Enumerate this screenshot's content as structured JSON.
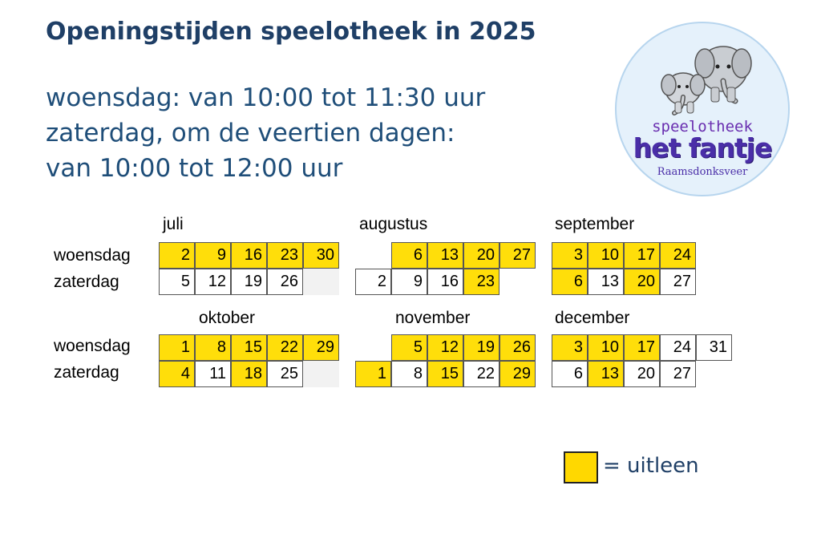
{
  "title": "Openingstijden speelotheek in 2025",
  "intro": [
    "woensdag: van 10:00 tot 11:30 uur",
    "zaterdag, om de veertien dagen:",
    "van 10:00 tot 12:00 uur"
  ],
  "logo": {
    "line1": "speelotheek",
    "line2": "het fantje",
    "line3": "Raamsdonksveer",
    "icon": "two-elephants-illustration"
  },
  "row_labels": {
    "wednesday": "woensdag",
    "saturday": "zaterdag"
  },
  "colors": {
    "highlight": "#ffde0a",
    "title": "#1f3f66",
    "text": "#1f4e79"
  },
  "months": [
    {
      "name": "juli",
      "woensdag": [
        {
          "d": "2",
          "u": true
        },
        {
          "d": "9",
          "u": true
        },
        {
          "d": "16",
          "u": true
        },
        {
          "d": "23",
          "u": true
        },
        {
          "d": "30",
          "u": true
        }
      ],
      "zaterdag": [
        {
          "d": "5",
          "u": false
        },
        {
          "d": "12",
          "u": false
        },
        {
          "d": "19",
          "u": false
        },
        {
          "d": "26",
          "u": false
        },
        {
          "d": "",
          "u": false,
          "blank": true
        }
      ]
    },
    {
      "name": "augustus",
      "woensdag": [
        {
          "d": "",
          "u": false,
          "empty": true
        },
        {
          "d": "6",
          "u": true
        },
        {
          "d": "13",
          "u": true
        },
        {
          "d": "20",
          "u": true
        },
        {
          "d": "27",
          "u": true
        }
      ],
      "zaterdag": [
        {
          "d": "2",
          "u": false
        },
        {
          "d": "9",
          "u": false
        },
        {
          "d": "16",
          "u": false
        },
        {
          "d": "23",
          "u": true
        }
      ]
    },
    {
      "name": "september",
      "woensdag": [
        {
          "d": "3",
          "u": true
        },
        {
          "d": "10",
          "u": true
        },
        {
          "d": "17",
          "u": true
        },
        {
          "d": "24",
          "u": true
        }
      ],
      "zaterdag": [
        {
          "d": "6",
          "u": true
        },
        {
          "d": "13",
          "u": false
        },
        {
          "d": "20",
          "u": true
        },
        {
          "d": "27",
          "u": false
        }
      ]
    },
    {
      "name": "oktober",
      "woensdag": [
        {
          "d": "1",
          "u": true
        },
        {
          "d": "8",
          "u": true
        },
        {
          "d": "15",
          "u": true
        },
        {
          "d": "22",
          "u": true
        },
        {
          "d": "29",
          "u": true
        }
      ],
      "zaterdag": [
        {
          "d": "4",
          "u": true
        },
        {
          "d": "11",
          "u": false
        },
        {
          "d": "18",
          "u": true
        },
        {
          "d": "25",
          "u": false
        },
        {
          "d": "",
          "u": false,
          "blank": true
        }
      ]
    },
    {
      "name": "november",
      "woensdag": [
        {
          "d": "",
          "u": false,
          "empty": true
        },
        {
          "d": "5",
          "u": true
        },
        {
          "d": "12",
          "u": true
        },
        {
          "d": "19",
          "u": true
        },
        {
          "d": "26",
          "u": true
        }
      ],
      "zaterdag": [
        {
          "d": "1",
          "u": true
        },
        {
          "d": "8",
          "u": false
        },
        {
          "d": "15",
          "u": true
        },
        {
          "d": "22",
          "u": false
        },
        {
          "d": "29",
          "u": true
        }
      ]
    },
    {
      "name": "december",
      "woensdag": [
        {
          "d": "3",
          "u": true
        },
        {
          "d": "10",
          "u": true
        },
        {
          "d": "17",
          "u": true
        },
        {
          "d": "24",
          "u": false
        },
        {
          "d": "31",
          "u": false
        }
      ],
      "zaterdag": [
        {
          "d": "6",
          "u": false
        },
        {
          "d": "13",
          "u": true
        },
        {
          "d": "20",
          "u": false
        },
        {
          "d": "27",
          "u": false
        }
      ]
    }
  ],
  "legend": {
    "text": "= uitleen"
  }
}
